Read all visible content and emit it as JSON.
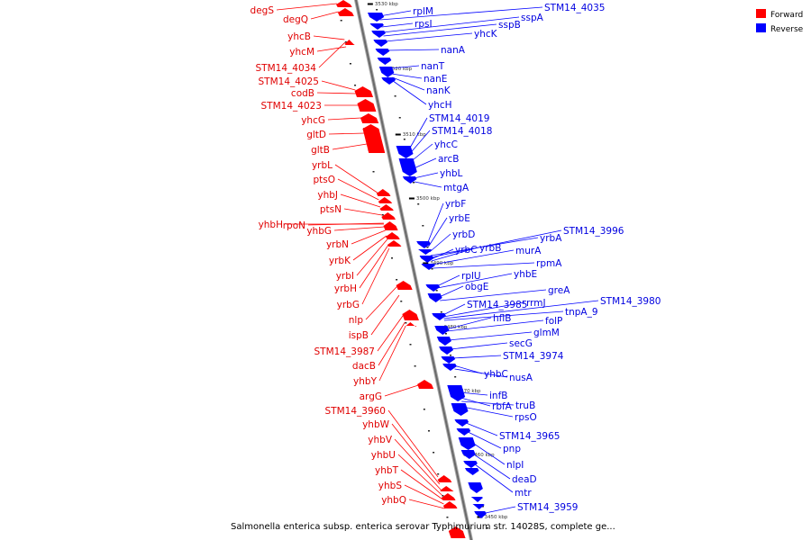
{
  "caption": "Salmonella enterica subsp. enterica serovar Typhimurium str. 14028S, complete ge...",
  "legend": [
    {
      "label": "Forward",
      "color": "#ff0000"
    },
    {
      "label": "Reverse",
      "color": "#0000ff"
    }
  ],
  "colors": {
    "forward": "#ff0000",
    "reverse": "#0000ff",
    "forward_text": "#e00000",
    "reverse_text": "#0000e0",
    "axis": "#888888"
  },
  "ticks": [
    "3530 kbp",
    "3520 kbp",
    "3510 kbp",
    "3500 kbp",
    "3490 kbp",
    "3480 kbp",
    "3470 kbp",
    "3460 kbp",
    "3450 kbp"
  ],
  "forward_genes": [
    "degS",
    "degQ",
    "yhcB",
    "yhcM",
    "STM14_4034",
    "STM14_4025",
    "codB",
    "STM14_4023",
    "yhcG",
    "gltD",
    "gltB",
    "yrbL",
    "ptsO",
    "yhbJ",
    "ptsN",
    "yhbH",
    "rpoN",
    "yhbG",
    "yrbN",
    "yrbK",
    "yrbI",
    "yrbH",
    "yrbG",
    "nlp",
    "ispB",
    "STM14_3987",
    "dacB",
    "yhbY",
    "argG",
    "STM14_3960",
    "yhbW",
    "yhbV",
    "yhbU",
    "yhbT",
    "yhbS",
    "yhbQ"
  ],
  "reverse_genes": [
    "rplM",
    "STM14_4035",
    "rpsI",
    "sspA",
    "sspB",
    "yhcK",
    "nanA",
    "nanT",
    "nanE",
    "nanK",
    "yhcH",
    "STM14_4019",
    "STM14_4018",
    "yhcC",
    "arcB",
    "yhbL",
    "mtgA",
    "yrbF",
    "yrbE",
    "yrbD",
    "yrbA",
    "STM14_3996",
    "yrbC",
    "yrbB",
    "murA",
    "rpmA",
    "rplU",
    "yhbE",
    "obgE",
    "greA",
    "STM14_3985",
    "rrmJ",
    "STM14_3980",
    "tnpA_9",
    "hflB",
    "folP",
    "glmM",
    "secG",
    "STM14_3974",
    "yhbC",
    "nusA",
    "infB",
    "rbfA",
    "truB",
    "rpsO",
    "STM14_3965",
    "pnp",
    "nlpI",
    "deaD",
    "mtr",
    "STM14_3959"
  ]
}
